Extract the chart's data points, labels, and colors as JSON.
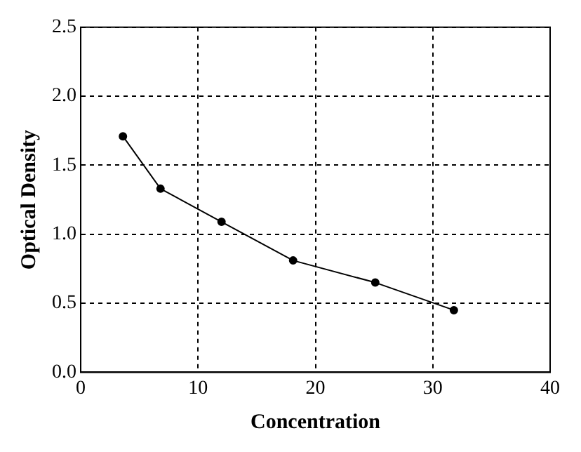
{
  "chart_data": {
    "type": "line",
    "xlabel": "Concentration",
    "ylabel": "Optical Density",
    "x": [
      3.6,
      6.8,
      12.0,
      18.1,
      25.1,
      31.8
    ],
    "series": [
      {
        "color": "#000000",
        "values": [
          1.71,
          1.33,
          1.09,
          0.81,
          0.65,
          0.45
        ]
      }
    ],
    "xlim": [
      0,
      40
    ],
    "xticks": [
      0,
      10,
      20,
      30,
      40
    ],
    "ylim": [
      0,
      2.5
    ],
    "yticks": [
      {
        "value": 0,
        "label": "0.0"
      },
      {
        "value": 0.5,
        "label": "0.5"
      },
      {
        "value": 1,
        "label": "1.0"
      },
      {
        "value": 1.5,
        "label": "1.5"
      },
      {
        "value": 2,
        "label": "2.0"
      },
      {
        "value": 2.5,
        "label": "2.5"
      }
    ],
    "grid": true,
    "legend": false,
    "marker": "circle",
    "line_style": "solid"
  }
}
